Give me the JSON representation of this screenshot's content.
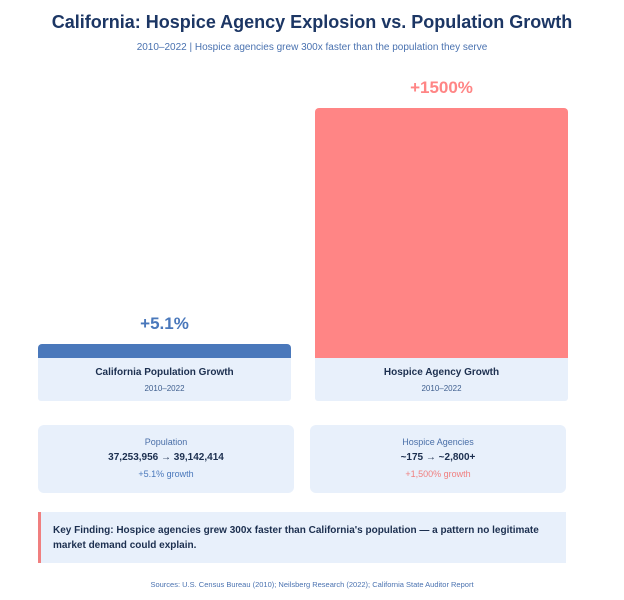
{
  "chart_data": {
    "type": "bar",
    "title": "California: Hospice Agency Explosion vs. Population Growth",
    "subtitle": "2010–2022 | Hospice agencies grew 300x faster than the population they serve",
    "categories": [
      "California Population Growth",
      "Hospice Agency Growth"
    ],
    "category_periods": [
      "2010–2022",
      "2010–2022"
    ],
    "values": [
      5.1,
      1500
    ],
    "value_labels": [
      "+5.1%",
      "+1500%"
    ],
    "unit": "percent growth",
    "ylim": [
      0,
      1500
    ],
    "colors": [
      "#4a78bb",
      "#ff8585"
    ]
  },
  "stats": [
    {
      "title": "Population",
      "value": "37,253,956 → 39,142,414",
      "growth": "+5.1% growth",
      "growth_color": "#4a78bb"
    },
    {
      "title": "Hospice Agencies",
      "value": "~175 → ~2,800+",
      "growth": "+1,500% growth",
      "growth_color": "#f07f7f"
    }
  ],
  "finding": "Key Finding: Hospice agencies grew 300x faster than California's population — a pattern no legitimate market demand could explain.",
  "sources": "Sources: U.S. Census Bureau (2010); Neilsberg Research (2022); California State Auditor Report"
}
